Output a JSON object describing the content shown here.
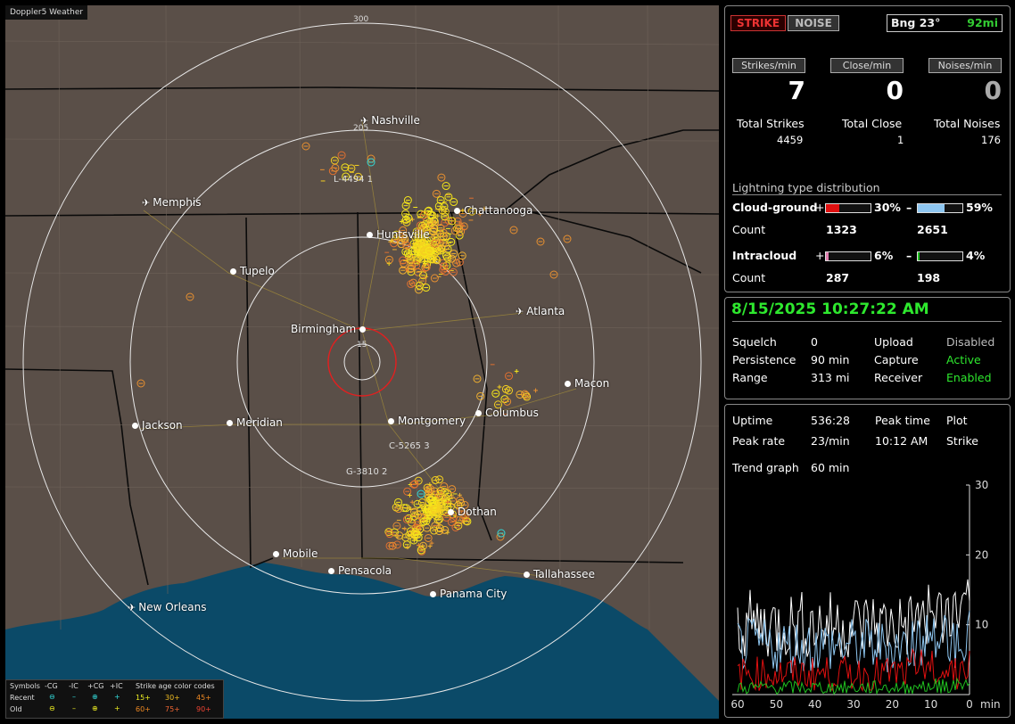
{
  "app": {
    "title": "Doppler5 Weather"
  },
  "map": {
    "ring_labels": [
      "300",
      "205",
      "15"
    ],
    "cities": [
      {
        "name": "Nashville",
        "type": "airport"
      },
      {
        "name": "Memphis",
        "type": "airport"
      },
      {
        "name": "Chattanooga",
        "type": "city"
      },
      {
        "name": "Huntsville",
        "type": "city"
      },
      {
        "name": "Tupelo",
        "type": "city"
      },
      {
        "name": "Atlanta",
        "type": "airport"
      },
      {
        "name": "Birmingham",
        "type": "city"
      },
      {
        "name": "Macon",
        "type": "city"
      },
      {
        "name": "Jackson",
        "type": "city"
      },
      {
        "name": "Meridian",
        "type": "city"
      },
      {
        "name": "Montgomery",
        "type": "city"
      },
      {
        "name": "Columbus",
        "type": "city"
      },
      {
        "name": "Dothan",
        "type": "city"
      },
      {
        "name": "Mobile",
        "type": "city"
      },
      {
        "name": "Pensacola",
        "type": "city"
      },
      {
        "name": "Tallahassee",
        "type": "city"
      },
      {
        "name": "Panama City",
        "type": "city"
      },
      {
        "name": "New Orleans",
        "type": "airport"
      }
    ],
    "cell_tags": [
      "L-4494 1",
      "C-5265 3",
      "G-3810 2"
    ],
    "symbols": {
      "header": [
        "Symbols",
        "-CG",
        "-IC",
        "+CG",
        "+IC",
        "Strike age color codes"
      ],
      "recent_label": "Recent",
      "old_label": "Old",
      "recent_ages": [
        "15+",
        "30+",
        "45+"
      ],
      "old_ages": [
        "60+",
        "75+",
        "90+"
      ]
    }
  },
  "controls": {
    "strike_label": "STRIKE",
    "noise_label": "NOISE",
    "bearing": "Bng 23°",
    "range": "92mi"
  },
  "rates": {
    "strikes_per_min_label": "Strikes/min",
    "close_per_min_label": "Close/min",
    "noises_per_min_label": "Noises/min",
    "strikes_per_min": "7",
    "close_per_min": "0",
    "noises_per_min": "0",
    "total_strikes_label": "Total Strikes",
    "total_close_label": "Total Close",
    "total_noises_label": "Total Noises",
    "total_strikes": "4459",
    "total_close": "1",
    "total_noises": "176"
  },
  "distribution": {
    "title": "Lightning type distribution",
    "cg_label": "Cloud-ground",
    "ic_label": "Intracloud",
    "count_label": "Count",
    "plus": "+",
    "minus": "–",
    "cg_pos_pct": "30%",
    "cg_neg_pct": "59%",
    "cg_pos_count": "1323",
    "cg_neg_count": "2651",
    "ic_pos_pct": "6%",
    "ic_neg_pct": "4%",
    "ic_pos_count": "287",
    "ic_neg_count": "198",
    "cg_pos_frac": 0.3,
    "cg_neg_frac": 0.59,
    "ic_pos_frac": 0.06,
    "ic_neg_frac": 0.04
  },
  "status": {
    "datetime": "8/15/2025 10:27:22 AM",
    "squelch_label": "Squelch",
    "squelch": "0",
    "persistence_label": "Persistence",
    "persistence": "90 min",
    "range_label": "Range",
    "range": "313 mi",
    "upload_label": "Upload",
    "upload": "Disabled",
    "capture_label": "Capture",
    "capture": "Active",
    "receiver_label": "Receiver",
    "receiver": "Enabled"
  },
  "stats": {
    "uptime_label": "Uptime",
    "uptime": "536:28",
    "peak_time_label": "Peak time",
    "peak_time": "10:12 AM",
    "plot_label": "Plot",
    "plot": "Strike",
    "peak_rate_label": "Peak rate",
    "peak_rate": "23/min",
    "trend_label": "Trend graph",
    "trend": "60 min"
  },
  "chart_data": {
    "type": "line",
    "x_ticks": [
      "60",
      "50",
      "40",
      "30",
      "20",
      "10",
      "0"
    ],
    "x_unit": "min",
    "y_ticks": [
      "30",
      "20",
      "10"
    ],
    "ylim": [
      0,
      30
    ],
    "xlim": [
      60,
      0
    ]
  }
}
